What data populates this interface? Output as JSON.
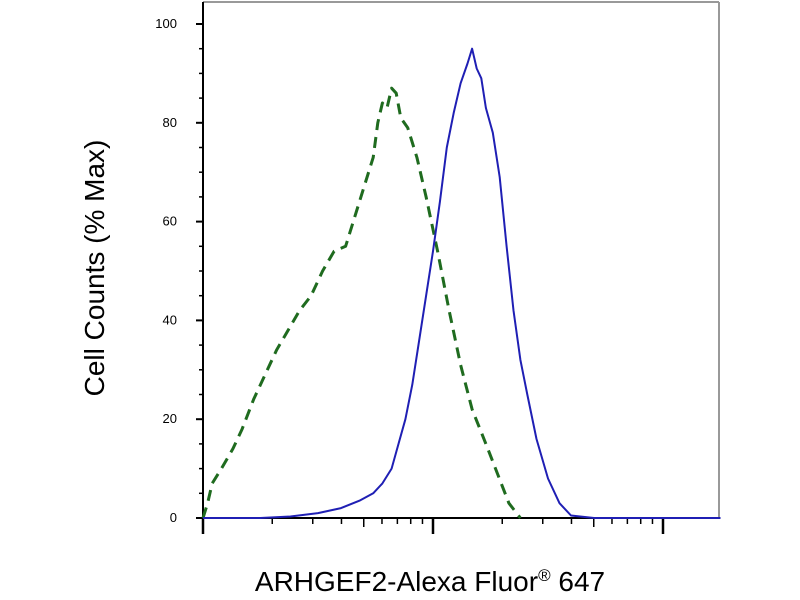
{
  "chart_data": {
    "type": "line",
    "xlabel": "ARHGEF2-Alexa Fluor",
    "xlabel_sup": "®",
    "xlabel_suffix": " 647",
    "ylabel": "Cell Counts (% Max)",
    "x_scale": "log",
    "x_decade_count": 3,
    "ylim": [
      0,
      100
    ],
    "yticks": [
      0,
      20,
      40,
      60,
      80,
      100
    ],
    "grid": false,
    "legend": "none",
    "x_minor_per_decade": true,
    "series": [
      {
        "style": "dashed",
        "color": "#1f6b1f",
        "points": [
          [
            0.0,
            0
          ],
          [
            0.02,
            3
          ],
          [
            0.04,
            7
          ],
          [
            0.08,
            10
          ],
          [
            0.13,
            14
          ],
          [
            0.17,
            18
          ],
          [
            0.22,
            24
          ],
          [
            0.27,
            29
          ],
          [
            0.32,
            34
          ],
          [
            0.37,
            38
          ],
          [
            0.42,
            42
          ],
          [
            0.47,
            45
          ],
          [
            0.52,
            50
          ],
          [
            0.57,
            54
          ],
          [
            0.62,
            55
          ],
          [
            0.66,
            61
          ],
          [
            0.7,
            67
          ],
          [
            0.74,
            73
          ],
          [
            0.76,
            80
          ],
          [
            0.78,
            84
          ],
          [
            0.8,
            83
          ],
          [
            0.82,
            87
          ],
          [
            0.84,
            86
          ],
          [
            0.86,
            81
          ],
          [
            0.89,
            79
          ],
          [
            0.93,
            73
          ],
          [
            0.97,
            65
          ],
          [
            1.02,
            54
          ],
          [
            1.07,
            42
          ],
          [
            1.12,
            31
          ],
          [
            1.17,
            22
          ],
          [
            1.23,
            15
          ],
          [
            1.28,
            9
          ],
          [
            1.33,
            3
          ],
          [
            1.38,
            0
          ]
        ]
      },
      {
        "style": "solid",
        "color": "#1f1fb4",
        "points": [
          [
            0.0,
            0
          ],
          [
            0.25,
            0
          ],
          [
            0.38,
            0.3
          ],
          [
            0.5,
            1
          ],
          [
            0.6,
            2
          ],
          [
            0.68,
            3.5
          ],
          [
            0.74,
            5
          ],
          [
            0.78,
            7
          ],
          [
            0.82,
            10
          ],
          [
            0.85,
            15
          ],
          [
            0.88,
            20
          ],
          [
            0.91,
            27
          ],
          [
            0.94,
            36
          ],
          [
            0.97,
            45
          ],
          [
            1.0,
            54
          ],
          [
            1.03,
            64
          ],
          [
            1.06,
            75
          ],
          [
            1.09,
            82
          ],
          [
            1.12,
            88
          ],
          [
            1.15,
            92
          ],
          [
            1.17,
            95
          ],
          [
            1.19,
            91
          ],
          [
            1.21,
            89
          ],
          [
            1.23,
            83
          ],
          [
            1.26,
            78
          ],
          [
            1.29,
            69
          ],
          [
            1.32,
            55
          ],
          [
            1.35,
            42
          ],
          [
            1.38,
            32
          ],
          [
            1.41,
            25
          ],
          [
            1.45,
            16
          ],
          [
            1.5,
            8
          ],
          [
            1.55,
            3
          ],
          [
            1.6,
            0.5
          ],
          [
            1.7,
            0
          ],
          [
            2.25,
            0
          ]
        ]
      }
    ]
  }
}
